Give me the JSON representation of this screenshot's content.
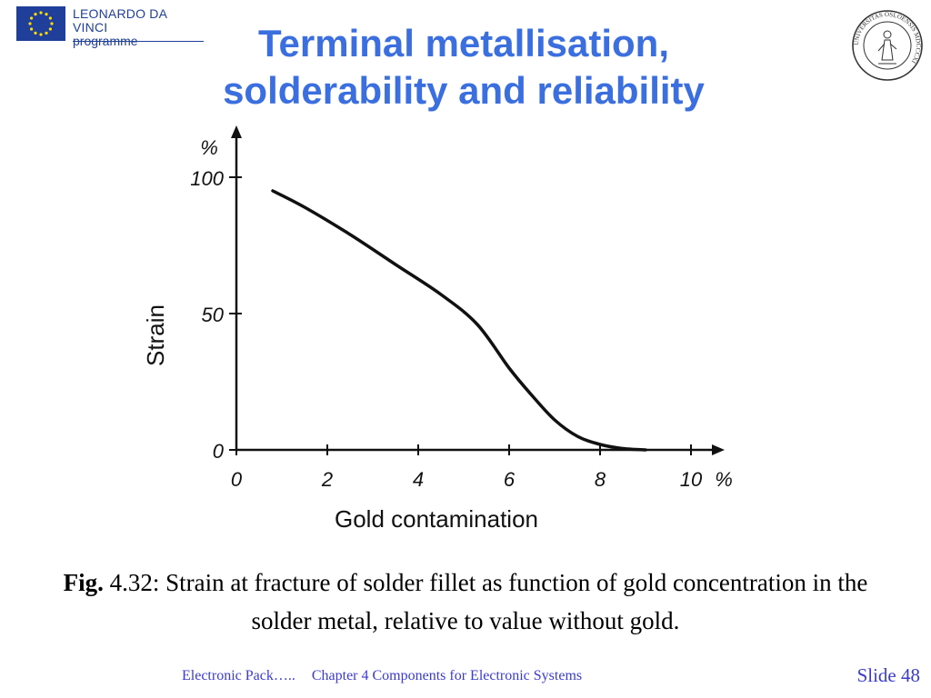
{
  "header": {
    "programme_line1": "LEONARDO DA VINCI",
    "programme_line2": "programme",
    "title_line1": "Terminal metallisation,",
    "title_line2": "solderability and reliability",
    "seal_text": "UNIVERSITAS OSLOENSIS MDCCCXI"
  },
  "chart_data": {
    "type": "line",
    "xlabel": "Gold contamination",
    "ylabel": "Strain",
    "y_unit_label": "%",
    "x_unit_label": "%",
    "x_ticks": [
      "0",
      "2",
      "4",
      "6",
      "8",
      "10"
    ],
    "y_ticks": [
      "0",
      "50",
      "100"
    ],
    "xlim": [
      0,
      10.5
    ],
    "ylim": [
      0,
      115
    ],
    "grid": false,
    "series": [
      {
        "x": [
          0.8,
          1.5,
          2.5,
          3.5,
          4.5,
          5.3,
          6.0,
          6.5,
          7.0,
          7.5,
          8.0,
          8.5,
          9.0
        ],
        "y": [
          95,
          89,
          79,
          68,
          57,
          46,
          30,
          20,
          11,
          5,
          2,
          0.5,
          0
        ]
      }
    ]
  },
  "caption": {
    "fig_label": "Fig.",
    "text": " 4.32: Strain at fracture of solder fillet as function of gold concentration in the solder metal, relative to value without gold."
  },
  "footer": {
    "left1": "Electronic Pack…..",
    "left2": "Chapter 4 Components for Electronic Systems",
    "slide": "Slide 48"
  }
}
